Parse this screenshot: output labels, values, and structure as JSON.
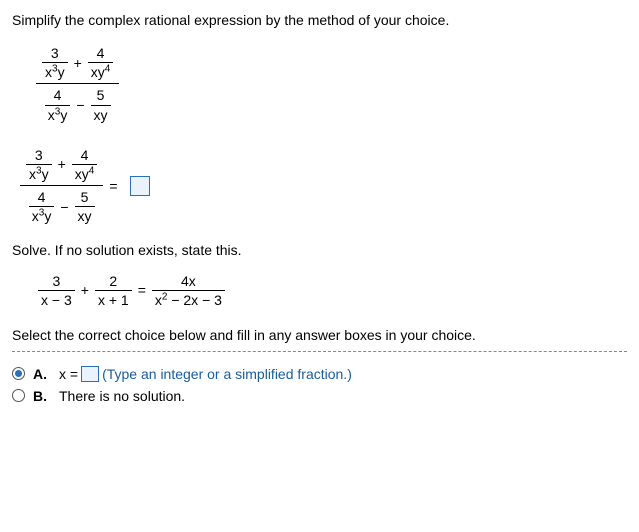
{
  "q1": {
    "instruction": "Simplify the complex rational expression by the method of your choice.",
    "frac": {
      "num_t1_n": "3",
      "num_t1_d": "x",
      "num_t1_e1": "3",
      "num_t1_d2": "y",
      "num_op": "+",
      "num_t2_n": "4",
      "num_t2_d": "xy",
      "num_t2_e": "4",
      "den_t1_n": "4",
      "den_t1_d": "x",
      "den_t1_e1": "3",
      "den_t1_d2": "y",
      "den_op": "−",
      "den_t2_n": "5",
      "den_t2_d": "xy"
    },
    "eq": "="
  },
  "q2": {
    "instruction": "Solve. If no solution exists, state this.",
    "t1_n": "3",
    "t1_d": "x − 3",
    "op1": "+",
    "t2_n": "2",
    "t2_d": "x + 1",
    "eq": "=",
    "t3_n": "4x",
    "t3_d": "x",
    "t3_e": "2",
    "t3_rest": " − 2x − 3",
    "choices_instr": "Select the correct choice below and fill in any answer boxes in your choice.",
    "A_label": "A.",
    "A_text": "x =",
    "A_hint": "(Type an integer or a simplified fraction.)",
    "B_label": "B.",
    "B_text": "There is no solution."
  }
}
